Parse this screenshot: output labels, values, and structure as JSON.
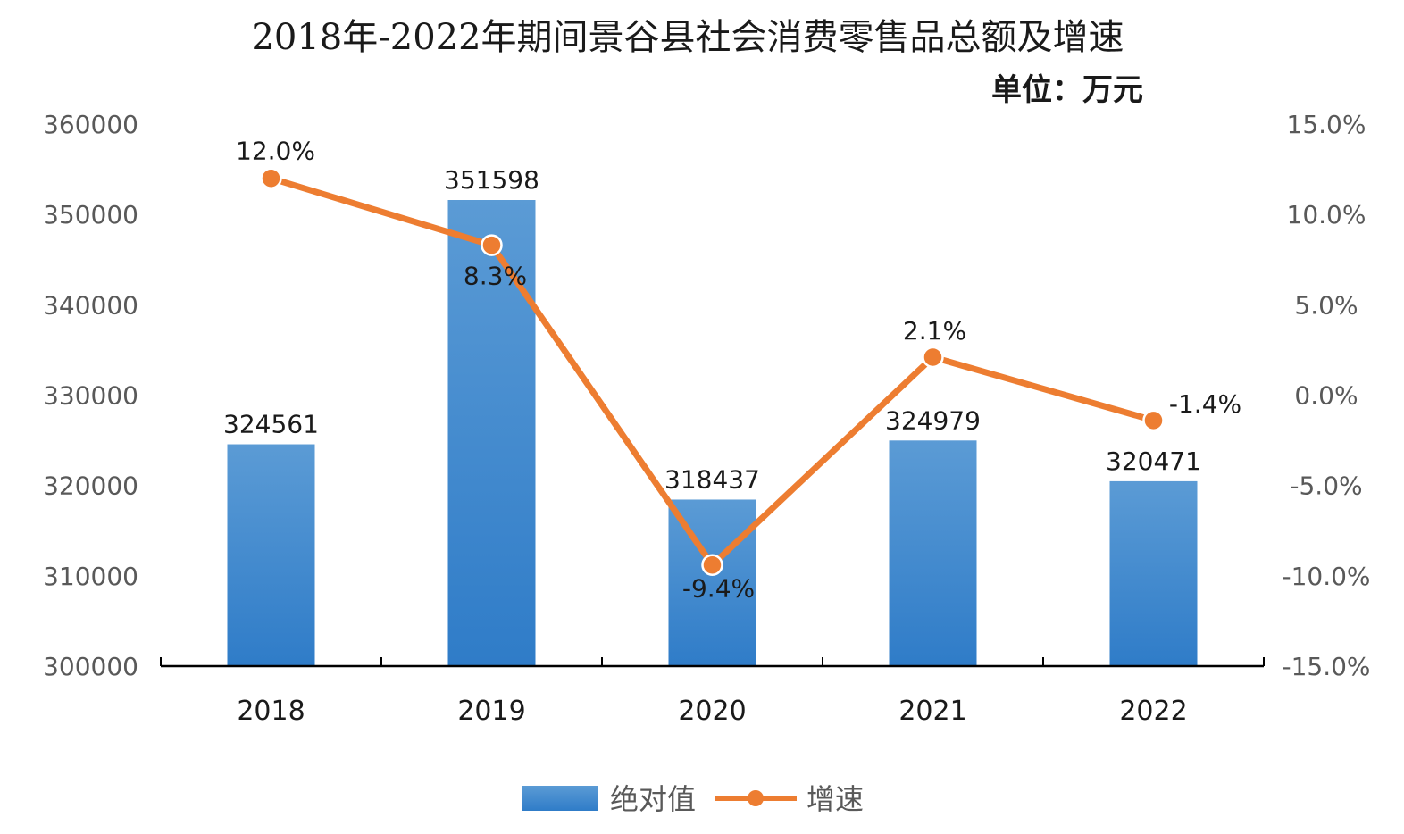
{
  "chart_data": {
    "type": "bar",
    "title": "2018年-2022年期间景谷县社会消费零售品总额及增速",
    "unit_label": "单位：万元",
    "categories": [
      "2018",
      "2019",
      "2020",
      "2021",
      "2022"
    ],
    "series": [
      {
        "name": "绝对值",
        "type": "bar",
        "axis": "left",
        "values": [
          324561,
          351598,
          318437,
          324979,
          320471
        ],
        "labels": [
          "324561",
          "351598",
          "318437",
          "324979",
          "320471"
        ]
      },
      {
        "name": "增速",
        "type": "line",
        "axis": "right",
        "values": [
          12.0,
          8.3,
          -9.4,
          2.1,
          -1.4
        ],
        "labels": [
          "12.0%",
          "8.3%",
          "-9.4%",
          "2.1%",
          "-1.4%"
        ]
      }
    ],
    "y_left": {
      "min": 300000,
      "max": 360000,
      "ticks": [
        "300000",
        "310000",
        "320000",
        "330000",
        "340000",
        "350000",
        "360000"
      ]
    },
    "y_right": {
      "min": -15,
      "max": 15,
      "ticks": [
        "-15.0%",
        "-10.0%",
        "-5.0%",
        "0.0%",
        "5.0%",
        "10.0%",
        "15.0%"
      ]
    },
    "legend": {
      "position": "bottom",
      "items": [
        "绝对值",
        "增速"
      ]
    },
    "grid": false,
    "colors": {
      "bar_top": "#5b9bd5",
      "bar_bottom": "#2e75b6",
      "line": "#ed7d31",
      "axis": "#000000"
    }
  }
}
